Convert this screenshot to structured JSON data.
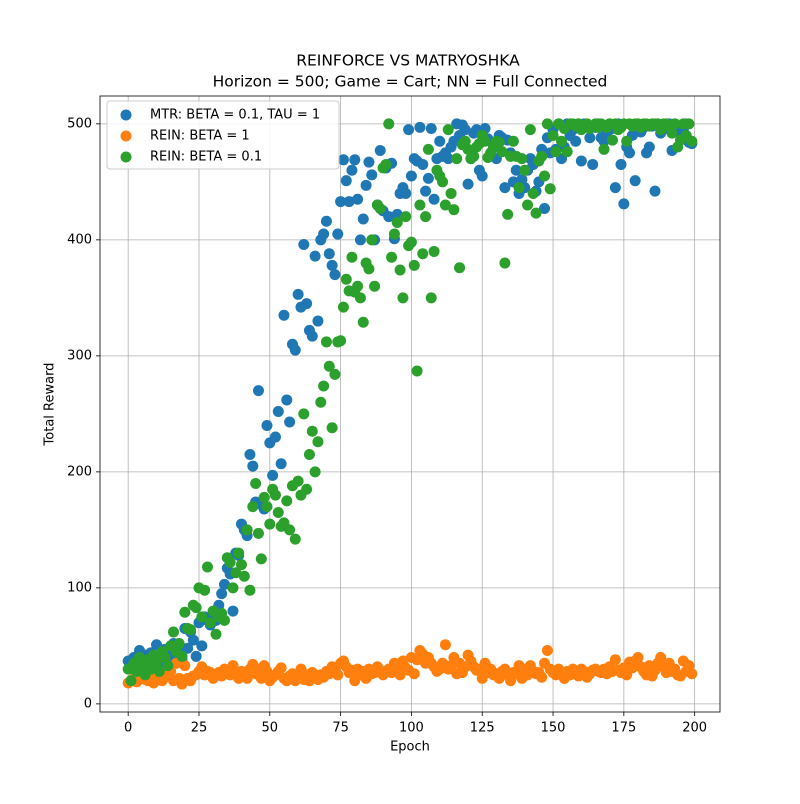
{
  "chart_data": {
    "type": "scatter",
    "title": "REINFORCE VS MATRYOSHKA",
    "subtitle": "Horizon = 500; Game = Cart; NN = Full Connected",
    "x_label": "Epoch",
    "y_label": "Total Reward",
    "xlim": [
      -9.95,
      208.95
    ],
    "ylim": [
      -7,
      524
    ],
    "xticks": [
      0,
      25,
      50,
      75,
      100,
      125,
      150,
      175,
      200
    ],
    "yticks": [
      0,
      100,
      200,
      300,
      400,
      500
    ],
    "grid": true,
    "legend": "upper left",
    "x": [
      0,
      1,
      2,
      3,
      4,
      5,
      6,
      7,
      8,
      9,
      10,
      11,
      12,
      13,
      14,
      15,
      16,
      17,
      18,
      19,
      20,
      21,
      22,
      23,
      24,
      25,
      26,
      27,
      28,
      29,
      30,
      31,
      32,
      33,
      34,
      35,
      36,
      37,
      38,
      39,
      40,
      41,
      42,
      43,
      44,
      45,
      46,
      47,
      48,
      49,
      50,
      51,
      52,
      53,
      54,
      55,
      56,
      57,
      58,
      59,
      60,
      61,
      62,
      63,
      64,
      65,
      66,
      67,
      68,
      69,
      70,
      71,
      72,
      73,
      74,
      75,
      76,
      77,
      78,
      79,
      80,
      81,
      82,
      83,
      84,
      85,
      86,
      87,
      88,
      89,
      90,
      91,
      92,
      93,
      94,
      95,
      96,
      97,
      98,
      99,
      100,
      101,
      102,
      103,
      104,
      105,
      106,
      107,
      108,
      109,
      110,
      111,
      112,
      113,
      114,
      115,
      116,
      117,
      118,
      119,
      120,
      121,
      122,
      123,
      124,
      125,
      126,
      127,
      128,
      129,
      130,
      131,
      132,
      133,
      134,
      135,
      136,
      137,
      138,
      139,
      140,
      141,
      142,
      143,
      144,
      145,
      146,
      147,
      148,
      149,
      150,
      151,
      152,
      153,
      154,
      155,
      156,
      157,
      158,
      159,
      160,
      161,
      162,
      163,
      164,
      165,
      166,
      167,
      168,
      169,
      170,
      171,
      172,
      173,
      174,
      175,
      176,
      177,
      178,
      179,
      180,
      181,
      182,
      183,
      184,
      185,
      186,
      187,
      188,
      189,
      190,
      191,
      192,
      193,
      194,
      195,
      196,
      197,
      198,
      199
    ],
    "series": [
      {
        "name": "MTR: BETA = 0.1, TAU = 1",
        "color": "#1f77b4",
        "values": [
          37,
          33,
          40,
          36,
          46,
          38,
          42,
          35,
          44,
          40,
          51,
          38,
          32,
          47,
          36,
          43,
          52,
          40,
          48,
          38,
          65,
          48,
          62,
          55,
          41,
          70,
          50,
          75,
          72,
          68,
          78,
          72,
          85,
          95,
          103,
          117,
          112,
          80,
          130,
          128,
          155,
          150,
          145,
          215,
          205,
          174,
          270,
          172,
          168,
          240,
          225,
          197,
          230,
          252,
          207,
          335,
          262,
          243,
          310,
          305,
          353,
          342,
          396,
          345,
          322,
          317,
          386,
          330,
          400,
          405,
          416,
          388,
          378,
          370,
          405,
          433,
          469,
          451,
          433,
          460,
          469,
          435,
          400,
          418,
          447,
          467,
          456,
          400,
          430,
          477,
          425,
          462,
          420,
          466,
          401,
          422,
          440,
          445,
          440,
          495,
          455,
          470,
          468,
          497,
          465,
          442,
          453,
          496,
          435,
          470,
          485,
          472,
          475,
          470,
          480,
          485,
          500,
          490,
          499,
          495,
          448,
          470,
          492,
          495,
          460,
          455,
          496,
          487,
          475,
          480,
          470,
          490,
          488,
          445,
          486,
          475,
          450,
          460,
          440,
          452,
          445,
          460,
          470,
          465,
          442,
          450,
          478,
          427,
          488,
          475,
          495,
          478,
          500,
          470,
          480,
          500,
          490,
          495,
          485,
          500,
          468,
          500,
          498,
          488,
          465,
          497,
          500,
          488,
          485,
          492,
          500,
          496,
          445,
          500,
          465,
          431,
          480,
          475,
          490,
          451,
          500,
          493,
          497,
          475,
          480,
          498,
          442,
          500,
          492,
          498,
          496,
          500,
          477,
          500,
          497,
          490,
          495,
          500,
          484,
          483
        ]
      },
      {
        "name": "REIN: BETA = 1",
        "color": "#ff7f0e",
        "values": [
          18,
          20,
          22,
          19,
          28,
          24,
          21,
          20,
          25,
          18,
          22,
          24,
          20,
          23,
          27,
          28,
          20,
          35,
          22,
          17,
          33,
          22,
          20,
          24,
          25,
          28,
          32,
          25,
          28,
          27,
          22,
          25,
          27,
          24,
          30,
          29,
          25,
          33,
          26,
          22,
          28,
          25,
          22,
          30,
          34,
          26,
          30,
          22,
          33,
          28,
          20,
          23,
          25,
          28,
          31,
          22,
          20,
          24,
          26,
          20,
          22,
          30,
          21,
          25,
          20,
          27,
          22,
          21,
          25,
          23,
          28,
          26,
          32,
          30,
          25,
          35,
          37,
          32,
          27,
          29,
          20,
          30,
          25,
          28,
          22,
          30,
          26,
          27,
          32,
          29,
          25,
          28,
          30,
          27,
          35,
          29,
          25,
          37,
          31,
          29,
          40,
          26,
          38,
          46,
          43,
          35,
          40,
          35,
          32,
          28,
          30,
          35,
          51,
          30,
          33,
          40,
          26,
          35,
          27,
          32,
          42,
          37,
          32,
          29,
          30,
          22,
          35,
          27,
          30,
          25,
          26,
          22,
          28,
          30,
          25,
          20,
          27,
          26,
          33,
          22,
          30,
          25,
          33,
          28,
          26,
          27,
          23,
          35,
          46,
          30,
          27,
          25,
          30,
          26,
          22,
          28,
          25,
          30,
          27,
          24,
          30,
          28,
          23,
          26,
          29,
          30,
          28,
          27,
          30,
          26,
          32,
          28,
          38,
          29,
          27,
          31,
          25,
          36,
          31,
          37,
          40,
          32,
          28,
          25,
          33,
          24,
          29,
          35,
          40,
          32,
          27,
          35,
          28,
          30,
          25,
          24,
          37,
          28,
          33,
          26
        ]
      },
      {
        "name": "REIN: BETA = 0.1",
        "color": "#2ca02c",
        "values": [
          30,
          20,
          35,
          28,
          40,
          33,
          25,
          38,
          30,
          42,
          36,
          28,
          45,
          40,
          33,
          50,
          62,
          45,
          52,
          41,
          79,
          65,
          64,
          85,
          83,
          100,
          75,
          98,
          118,
          70,
          80,
          60,
          75,
          78,
          72,
          126,
          122,
          100,
          113,
          130,
          120,
          110,
          150,
          98,
          170,
          190,
          147,
          125,
          178,
          170,
          155,
          185,
          180,
          165,
          153,
          156,
          175,
          150,
          188,
          142,
          192,
          180,
          250,
          185,
          215,
          235,
          200,
          226,
          260,
          274,
          312,
          291,
          238,
          284,
          312,
          313,
          342,
          366,
          356,
          385,
          355,
          360,
          350,
          329,
          380,
          375,
          400,
          360,
          430,
          427,
          462,
          465,
          500,
          385,
          405,
          415,
          374,
          350,
          420,
          395,
          398,
          378,
          287,
          430,
          388,
          420,
          478,
          350,
          390,
          460,
          455,
          450,
          430,
          495,
          440,
          426,
          470,
          376,
          482,
          485,
          478,
          470,
          472,
          480,
          483,
          490,
          485,
          471,
          475,
          480,
          485,
          484,
          476,
          380,
          422,
          472,
          485,
          472,
          445,
          470,
          460,
          430,
          495,
          440,
          423,
          468,
          472,
          455,
          500,
          444,
          490,
          476,
          500,
          485,
          496,
          476,
          500,
          500,
          498,
          500,
          495,
          498,
          500,
          496,
          498,
          500,
          497,
          500,
          478,
          497,
          500,
          486,
          500,
          495,
          497,
          500,
          485,
          500,
          498,
          500,
          500,
          497,
          500,
          500,
          498,
          500,
          500,
          500,
          495,
          500,
          500,
          498,
          492,
          500,
          480,
          486,
          500,
          490,
          500,
          485
        ]
      }
    ]
  }
}
